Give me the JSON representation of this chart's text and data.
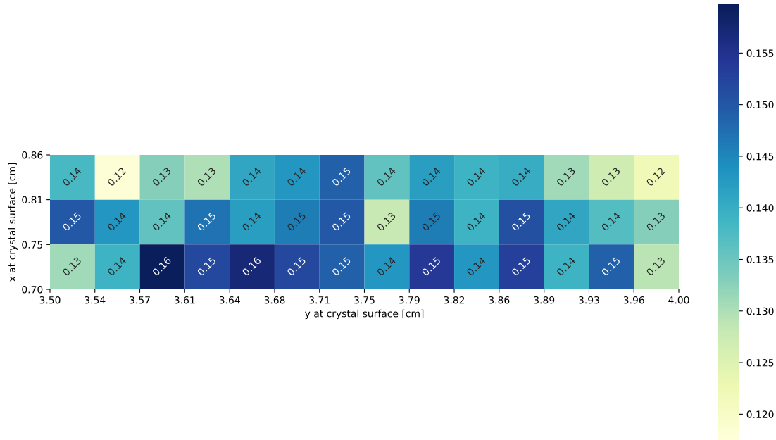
{
  "chart_data": {
    "type": "heatmap",
    "xlabel": "y at crystal surface [cm]",
    "ylabel": "x at crystal surface [cm]",
    "cells": [
      [
        0.138,
        0.118,
        0.133,
        0.13,
        0.141,
        0.143,
        0.149,
        0.136,
        0.142,
        0.139,
        0.14,
        0.131,
        0.127,
        0.122
      ],
      [
        0.15,
        0.143,
        0.136,
        0.147,
        0.142,
        0.146,
        0.15,
        0.128,
        0.146,
        0.139,
        0.151,
        0.141,
        0.137,
        0.133
      ],
      [
        0.131,
        0.139,
        0.1595,
        0.152,
        0.157,
        0.152,
        0.149,
        0.143,
        0.154,
        0.143,
        0.153,
        0.139,
        0.149,
        0.129
      ]
    ],
    "cell_labels": [
      [
        "0.14",
        "0.12",
        "0.13",
        "0.13",
        "0.14",
        "0.14",
        "0.15",
        "0.14",
        "0.14",
        "0.14",
        "0.14",
        "0.13",
        "0.13",
        "0.12"
      ],
      [
        "0.15",
        "0.14",
        "0.14",
        "0.15",
        "0.14",
        "0.15",
        "0.15",
        "0.13",
        "0.15",
        "0.14",
        "0.15",
        "0.14",
        "0.14",
        "0.13"
      ],
      [
        "0.13",
        "0.14",
        "0.16",
        "0.15",
        "0.16",
        "0.15",
        "0.15",
        "0.14",
        "0.15",
        "0.14",
        "0.15",
        "0.14",
        "0.15",
        "0.13"
      ]
    ],
    "xlim": [
      3.5,
      4.0
    ],
    "xticks": [
      {
        "value": 3.5,
        "label": "3.50"
      },
      {
        "value": 3.5357,
        "label": "3.54"
      },
      {
        "value": 3.5714,
        "label": "3.57"
      },
      {
        "value": 3.6071,
        "label": "3.61"
      },
      {
        "value": 3.6429,
        "label": "3.64"
      },
      {
        "value": 3.6786,
        "label": "3.68"
      },
      {
        "value": 3.7143,
        "label": "3.71"
      },
      {
        "value": 3.75,
        "label": "3.75"
      },
      {
        "value": 3.7857,
        "label": "3.79"
      },
      {
        "value": 3.8214,
        "label": "3.82"
      },
      {
        "value": 3.8571,
        "label": "3.86"
      },
      {
        "value": 3.8929,
        "label": "3.89"
      },
      {
        "value": 3.9286,
        "label": "3.93"
      },
      {
        "value": 3.9643,
        "label": "3.96"
      },
      {
        "value": 4.0,
        "label": "4.00"
      }
    ],
    "ylim": [
      0.7,
      0.86
    ],
    "yticks": [
      {
        "value": 0.7,
        "label": "0.70"
      },
      {
        "value": 0.7533,
        "label": "0.75"
      },
      {
        "value": 0.8067,
        "label": "0.81"
      },
      {
        "value": 0.86,
        "label": "0.86"
      }
    ],
    "clim": [
      0.1175,
      0.1598
    ],
    "cticks": [
      {
        "value": 0.12,
        "label": "0.120"
      },
      0.125,
      {
        "value": 0.13,
        "label": "0.130"
      },
      0.135,
      {
        "value": 0.14,
        "label": "0.140"
      },
      0.145,
      {
        "value": 0.15,
        "label": "0.150"
      },
      0.155
    ]
  }
}
